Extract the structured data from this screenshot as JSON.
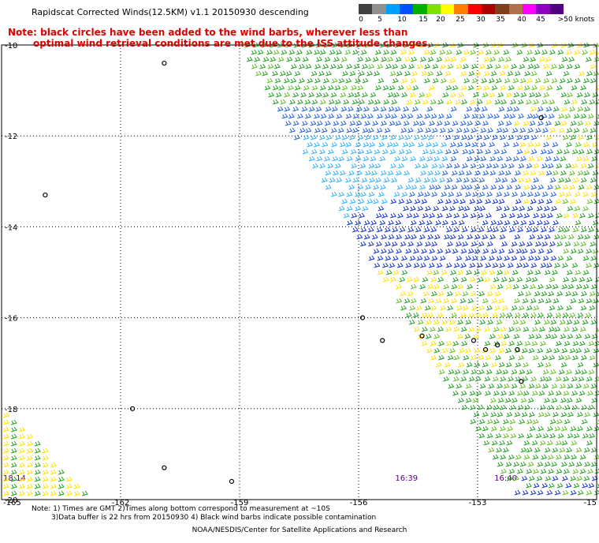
{
  "header": {
    "title": "Rapidscat Corrected Winds(12.5KM) v1.1 20150930 descending",
    "note_line1": "Note: black circles have been added to the wind barbs, wherever less than",
    "note_line2": "optimal wind retrieval conditions are met due to the ISS attitude changes."
  },
  "legend": {
    "labels": [
      "0",
      "5",
      "10",
      "15",
      "20",
      "25",
      "30",
      "35",
      "40",
      "45",
      ">50 knots"
    ],
    "colors": [
      "#404040",
      "#909090",
      "#00a0ff",
      "#0050ff",
      "#00b000",
      "#80e000",
      "#ffff00",
      "#ff8000",
      "#ff0000",
      "#b00000",
      "#804020",
      "#b07050",
      "#ff00ff",
      "#9000c0",
      "#500080"
    ]
  },
  "axes": {
    "lat_labels": [
      "-10",
      "-12",
      "-14",
      "-16",
      "-18",
      "-20"
    ],
    "lon_labels": [
      "-165",
      "-162",
      "-159",
      "-156",
      "-153",
      "-15"
    ]
  },
  "times": [
    "18:14",
    "16:39",
    "16:40"
  ],
  "footer": {
    "note1": "Note: 1) Times are GMT 2)Times along bottom correspond to measurement at ~10S",
    "note2": "3)Data buffer is 22 hrs from 20150930 4) Black wind barbs indicate possible contamination",
    "credit": "NOAA/NESDIS/Center for Satellite Applications and Research"
  },
  "map_data": {
    "lat_range": [
      -20,
      -10
    ],
    "lon_range": [
      -165,
      -150
    ],
    "islands": [
      {
        "lon": -160.9,
        "lat": -10.4
      },
      {
        "lon": -163.9,
        "lat": -13.3
      },
      {
        "lon": -161.7,
        "lat": -18.0
      },
      {
        "lon": -160.9,
        "lat": -19.3
      },
      {
        "lon": -159.2,
        "lat": -19.6
      },
      {
        "lon": -155.9,
        "lat": -16.0
      },
      {
        "lon": -155.4,
        "lat": -16.5
      },
      {
        "lon": -154.4,
        "lat": -16.4
      },
      {
        "lon": -153.1,
        "lat": -16.5
      },
      {
        "lon": -152.8,
        "lat": -16.7
      },
      {
        "lon": -152.5,
        "lat": -16.6
      },
      {
        "lon": -152.0,
        "lat": -16.7
      },
      {
        "lon": -151.9,
        "lat": -17.4
      },
      {
        "lon": -151.4,
        "lat": -11.6
      }
    ]
  }
}
